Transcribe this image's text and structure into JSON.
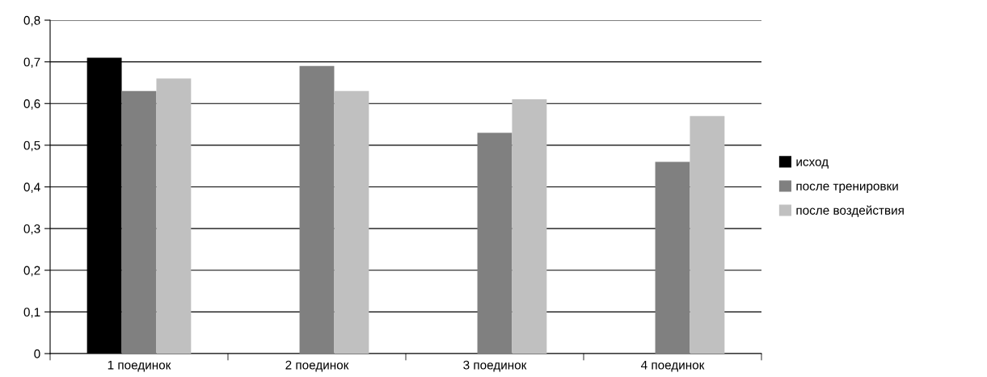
{
  "chart_data": {
    "type": "bar",
    "categories": [
      "1 поединок",
      "2 поединок",
      "3 поединок",
      "4 поединок"
    ],
    "series": [
      {
        "name": "исход",
        "color": "#000000",
        "values": [
          0.71,
          null,
          null,
          null
        ]
      },
      {
        "name": "после тренировки",
        "color": "#808080",
        "values": [
          0.63,
          0.69,
          0.53,
          0.46
        ]
      },
      {
        "name": "после воздействия",
        "color": "#c0c0c0",
        "values": [
          0.66,
          0.63,
          0.61,
          0.57
        ]
      }
    ],
    "ylim": [
      0,
      0.8
    ],
    "yticks": [
      {
        "value": 0,
        "label": "0"
      },
      {
        "value": 0.1,
        "label": "0,1"
      },
      {
        "value": 0.2,
        "label": "0,2"
      },
      {
        "value": 0.3,
        "label": "0,3"
      },
      {
        "value": 0.4,
        "label": "0,4"
      },
      {
        "value": 0.5,
        "label": "0,5"
      },
      {
        "value": 0.6,
        "label": "0,6"
      },
      {
        "value": 0.7,
        "label": "0,7"
      },
      {
        "value": 0.8,
        "label": "0,8"
      }
    ],
    "grid": "y",
    "legend": "right"
  }
}
